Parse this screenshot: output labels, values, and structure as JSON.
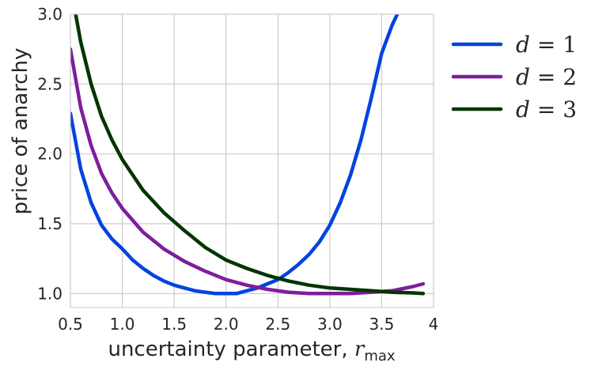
{
  "chart_data": {
    "type": "line",
    "title": "",
    "xlabel": "uncertainty parameter, ",
    "xlabel_var": "r",
    "xlabel_sub": "max",
    "ylabel": "price of anarchy",
    "xlim": [
      0.5,
      4.0
    ],
    "ylim": [
      0.9,
      3.0
    ],
    "xticks": [
      0.5,
      1.0,
      1.5,
      2.0,
      2.5,
      3.0,
      3.5,
      4.0
    ],
    "xtick_labels": [
      "0.5",
      "1.0",
      "1.5",
      "2.0",
      "2.5",
      "3.0",
      "3.5",
      "4"
    ],
    "yticks": [
      1.0,
      1.5,
      2.0,
      2.5,
      3.0
    ],
    "ytick_labels": [
      "1.0",
      "1.5",
      "2.0",
      "2.5",
      "3.0"
    ],
    "grid": true,
    "legend_position": "outside-right-top",
    "series": [
      {
        "name": "d = 1",
        "name_var": "d",
        "name_rest": " = 1",
        "color": "#0343df",
        "x": [
          0.5,
          0.6,
          0.7,
          0.8,
          0.9,
          1.0,
          1.1,
          1.2,
          1.3,
          1.4,
          1.5,
          1.6,
          1.7,
          1.8,
          1.9,
          2.0,
          2.1,
          2.2,
          2.3,
          2.4,
          2.5,
          2.6,
          2.7,
          2.8,
          2.9,
          3.0,
          3.1,
          3.2,
          3.3,
          3.4,
          3.5,
          3.6,
          3.65
        ],
        "y": [
          2.29,
          1.89,
          1.65,
          1.49,
          1.39,
          1.32,
          1.24,
          1.18,
          1.13,
          1.09,
          1.06,
          1.04,
          1.02,
          1.01,
          1.0,
          1.0,
          1.0,
          1.02,
          1.04,
          1.07,
          1.1,
          1.15,
          1.21,
          1.28,
          1.37,
          1.49,
          1.65,
          1.85,
          2.1,
          2.4,
          2.72,
          2.92,
          3.0
        ]
      },
      {
        "name": "d = 2",
        "name_var": "d",
        "name_rest": " = 2",
        "color": "#7e1e9c",
        "x": [
          0.5,
          0.6,
          0.7,
          0.8,
          0.9,
          1.0,
          1.2,
          1.4,
          1.6,
          1.8,
          2.0,
          2.2,
          2.4,
          2.6,
          2.8,
          3.0,
          3.2,
          3.4,
          3.6,
          3.8,
          3.9
        ],
        "y": [
          2.75,
          2.33,
          2.06,
          1.86,
          1.72,
          1.61,
          1.44,
          1.32,
          1.23,
          1.16,
          1.1,
          1.06,
          1.03,
          1.01,
          1.0,
          1.0,
          1.0,
          1.01,
          1.02,
          1.05,
          1.07
        ]
      },
      {
        "name": "d = 3",
        "name_var": "d",
        "name_rest": " = 3",
        "color": "#033500",
        "x": [
          0.5,
          0.55,
          0.6,
          0.7,
          0.8,
          0.9,
          1.0,
          1.2,
          1.4,
          1.6,
          1.8,
          2.0,
          2.2,
          2.4,
          2.6,
          2.8,
          3.0,
          3.2,
          3.4,
          3.6,
          3.8,
          3.9
        ],
        "y": [
          3.1,
          3.0,
          2.8,
          2.5,
          2.27,
          2.1,
          1.96,
          1.74,
          1.58,
          1.45,
          1.33,
          1.24,
          1.18,
          1.13,
          1.09,
          1.06,
          1.04,
          1.03,
          1.02,
          1.01,
          1.005,
          1.0
        ]
      }
    ]
  }
}
